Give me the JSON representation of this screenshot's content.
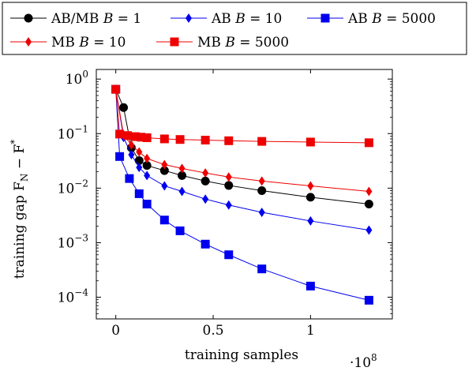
{
  "chart_data": {
    "type": "line",
    "xlabel": "training samples",
    "x_multiplier": "·10",
    "x_multiplier_exp": "8",
    "ylabel_main": "training gap F",
    "ylabel_sub": "N",
    "ylabel_minus": " − F",
    "ylabel_sup": "*",
    "yscale": "log",
    "ylim": [
      4e-05,
      1.5
    ],
    "xlim": [
      -0.1,
      1.42
    ],
    "xticks": [
      {
        "value": 0,
        "label": "0"
      },
      {
        "value": 0.5,
        "label": "0.5"
      },
      {
        "value": 1,
        "label": "1"
      }
    ],
    "yticks": [
      {
        "value": 1,
        "base": "10",
        "exp": "0"
      },
      {
        "value": 0.1,
        "base": "10",
        "exp": "−1"
      },
      {
        "value": 0.01,
        "base": "10",
        "exp": "−2"
      },
      {
        "value": 0.001,
        "base": "10",
        "exp": "−3"
      },
      {
        "value": 0.0001,
        "base": "10",
        "exp": "−4"
      }
    ],
    "grid": false,
    "legend_position": "top",
    "series": [
      {
        "name_prefix": "AB/MB ",
        "name_var": "B",
        "name_value": " = 1",
        "color": "#000000",
        "marker": "circle",
        "x": [
          0,
          0.04,
          0.08,
          0.12,
          0.16,
          0.25,
          0.34,
          0.46,
          0.58,
          0.75,
          1.0,
          1.3
        ],
        "y": [
          0.65,
          0.3,
          0.055,
          0.032,
          0.026,
          0.021,
          0.017,
          0.0135,
          0.0112,
          0.009,
          0.0068,
          0.0051
        ]
      },
      {
        "name_prefix": "AB ",
        "name_var": "B",
        "name_value": " = 10",
        "color": "#0000ee",
        "marker": "diamond",
        "x": [
          0,
          0.04,
          0.08,
          0.12,
          0.16,
          0.25,
          0.34,
          0.46,
          0.58,
          0.75,
          1.0,
          1.3
        ],
        "y": [
          0.65,
          0.085,
          0.041,
          0.024,
          0.017,
          0.011,
          0.0087,
          0.0063,
          0.0049,
          0.0036,
          0.0025,
          0.0017
        ]
      },
      {
        "name_prefix": "AB ",
        "name_var": "B",
        "name_value": " = 5000",
        "color": "#0000ee",
        "marker": "square",
        "x": [
          0,
          0.02,
          0.07,
          0.12,
          0.16,
          0.25,
          0.33,
          0.46,
          0.58,
          0.75,
          1.0,
          1.3
        ],
        "y": [
          0.65,
          0.038,
          0.015,
          0.0079,
          0.0051,
          0.0026,
          0.00165,
          0.00094,
          0.0006,
          0.00033,
          0.00016,
          8.8e-05
        ]
      },
      {
        "name_prefix": "MB ",
        "name_var": "B",
        "name_value": " = 10",
        "color": "#ee0000",
        "marker": "diamond",
        "x": [
          0,
          0.04,
          0.08,
          0.12,
          0.16,
          0.25,
          0.34,
          0.46,
          0.58,
          0.75,
          1.0,
          1.3
        ],
        "y": [
          0.65,
          0.095,
          0.062,
          0.046,
          0.035,
          0.027,
          0.023,
          0.019,
          0.016,
          0.0135,
          0.011,
          0.0087
        ]
      },
      {
        "name_prefix": "MB ",
        "name_var": "B",
        "name_value": " = 5000",
        "color": "#ee0000",
        "marker": "square",
        "x": [
          0,
          0.02,
          0.06,
          0.1,
          0.13,
          0.16,
          0.25,
          0.33,
          0.46,
          0.58,
          0.75,
          1.0,
          1.3
        ],
        "y": [
          0.65,
          0.098,
          0.092,
          0.088,
          0.086,
          0.084,
          0.08,
          0.078,
          0.076,
          0.074,
          0.072,
          0.07,
          0.068
        ]
      }
    ]
  }
}
